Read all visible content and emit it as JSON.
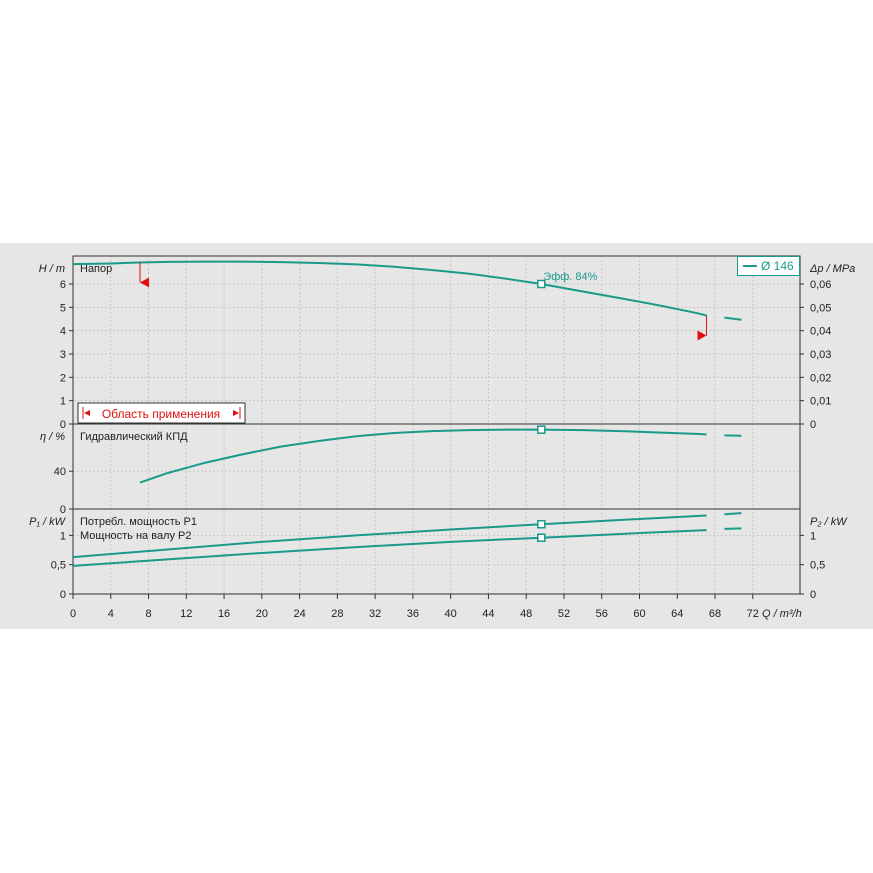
{
  "chart_data": {
    "type": "line",
    "x_axis": {
      "label": "Q / m³/h",
      "ticks": [
        0,
        4,
        8,
        12,
        16,
        20,
        24,
        28,
        32,
        36,
        40,
        44,
        48,
        52,
        56,
        60,
        64,
        68,
        72
      ],
      "range": [
        0,
        77
      ]
    },
    "legend": "Ø 146",
    "line_color": "#1a9a8a",
    "marker_color": "#1a9a8a",
    "range_marker_color": "#e01010",
    "duty_point": {
      "x": 49.6,
      "efficiency_label": "Эфф.  84%"
    },
    "application_range": {
      "label": "Область применения",
      "x_min": 7.1,
      "x_max": 67.1
    },
    "panels": [
      {
        "id": "head",
        "label": "Напор",
        "ylabel_left": "H / m",
        "ylabel_right": "Δp / MPa",
        "ylim": [
          0,
          7.2
        ],
        "ticks_left": [
          "0",
          "1",
          "2",
          "3",
          "4",
          "5",
          "6"
        ],
        "ticks_right": [
          "0",
          "0,01",
          "0,02",
          "0,03",
          "0,04",
          "0,05",
          "0,06"
        ],
        "series": [
          {
            "x": [
              0,
              4,
              7,
              10,
              14,
              18,
              22,
              26,
              30,
              34,
              38,
              42,
              46,
              49.6,
              54,
              58,
              62,
              66,
              67.1
            ],
            "y": [
              6.85,
              6.88,
              6.92,
              6.95,
              6.96,
              6.96,
              6.94,
              6.9,
              6.84,
              6.74,
              6.6,
              6.44,
              6.22,
              6.0,
              5.68,
              5.39,
              5.09,
              4.76,
              4.65
            ]
          }
        ],
        "extension": {
          "x": [
            69.0,
            70.8
          ],
          "y": [
            4.56,
            4.47
          ]
        }
      },
      {
        "id": "efficiency",
        "label": "Гидравлический КПД",
        "ylabel_left": "η / %",
        "ylim": [
          0,
          90
        ],
        "ticks_left": [
          "0",
          "40"
        ],
        "series": [
          {
            "x": [
              7.1,
              10,
              14,
              18,
              22,
              26,
              30,
              34,
              38,
              42,
              46,
              49.6,
              54,
              58,
              62,
              66,
              67.1
            ],
            "y": [
              28,
              38,
              49,
              58,
              66,
              72,
              77,
              80.5,
              82.5,
              83.5,
              84,
              84,
              83.5,
              82.5,
              81,
              79.5,
              79
            ]
          }
        ],
        "extension": {
          "x": [
            69.0,
            70.8
          ],
          "y": [
            78,
            77.5
          ]
        }
      },
      {
        "id": "power",
        "label": "Потребл. мощность P1",
        "label_2": "Мощность на валу P2",
        "ylabel_left": "P₁ / kW",
        "ylabel_right": "P₂ / kW",
        "ylim": [
          0,
          1.45
        ],
        "ticks_left": [
          "0",
          "0,5",
          "1"
        ],
        "ticks_right": [
          "0",
          "0,5",
          "1"
        ],
        "series": [
          {
            "name": "Потребл. мощность P1",
            "x": [
              0,
              10,
              20,
              30,
              40,
              49.6,
              60,
              67.1
            ],
            "y": [
              0.63,
              0.76,
              0.89,
              1.0,
              1.1,
              1.19,
              1.28,
              1.34
            ]
          },
          {
            "name": "Мощность на валу P2",
            "x": [
              0,
              10,
              20,
              30,
              40,
              49.6,
              60,
              67.1
            ],
            "y": [
              0.48,
              0.59,
              0.7,
              0.8,
              0.89,
              0.96,
              1.04,
              1.09
            ]
          }
        ],
        "extensions": [
          {
            "x": [
              69.0,
              70.8
            ],
            "y": [
              1.36,
              1.38
            ]
          },
          {
            "x": [
              69.0,
              70.8
            ],
            "y": [
              1.11,
              1.12
            ]
          }
        ]
      }
    ]
  }
}
